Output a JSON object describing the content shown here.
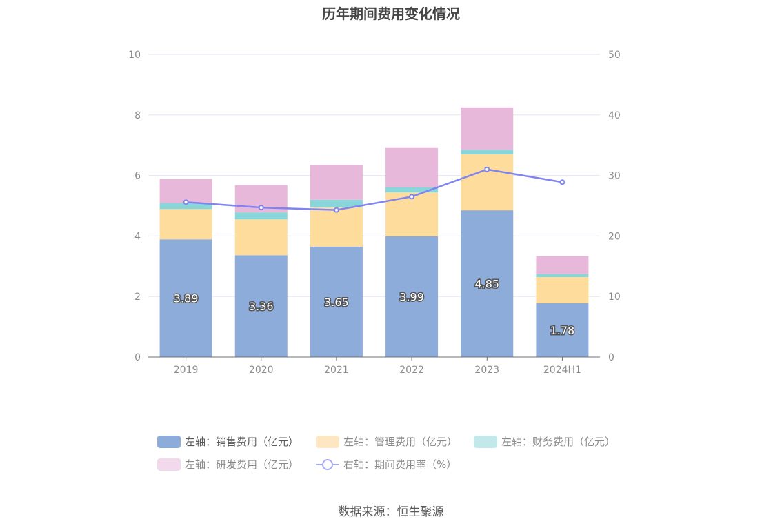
{
  "chart_data": {
    "type": "bar",
    "title": "历年期间费用变化情况",
    "categories": [
      "2019",
      "2020",
      "2021",
      "2022",
      "2023",
      "2024H1"
    ],
    "y_left": {
      "ylim": [
        0,
        10
      ],
      "ticks": [
        "0",
        "2",
        "4",
        "6",
        "8",
        "10"
      ]
    },
    "y_right": {
      "ylim": [
        0,
        50
      ],
      "ticks": [
        "0",
        "10",
        "20",
        "30",
        "40",
        "50"
      ]
    },
    "grid": true,
    "legend_position": "bottom",
    "series": [
      {
        "name": "左轴：销售费用（亿元）",
        "type": "bar",
        "axis": "left",
        "color": "#8eacd9",
        "values": [
          3.89,
          3.36,
          3.65,
          3.99,
          4.85,
          1.78
        ],
        "labels": [
          "3.89",
          "3.36",
          "3.65",
          "3.99",
          "4.85",
          "1.78"
        ]
      },
      {
        "name": "左轴：管理费用（亿元）",
        "type": "bar",
        "axis": "left",
        "color": "#fedc9b",
        "values": [
          1.0,
          1.19,
          1.3,
          1.45,
          1.85,
          0.86
        ]
      },
      {
        "name": "左轴：财务费用（亿元）",
        "type": "bar",
        "axis": "left",
        "color": "#88d6da",
        "values": [
          0.2,
          0.23,
          0.25,
          0.17,
          0.15,
          0.1
        ]
      },
      {
        "name": "左轴：研发费用（亿元）",
        "type": "bar",
        "axis": "left",
        "color": "#e8b8db",
        "values": [
          0.8,
          0.9,
          1.15,
          1.32,
          1.4,
          0.6
        ]
      },
      {
        "name": "右轴：期间费用率（%）",
        "type": "line",
        "axis": "right",
        "color": "#7f84f0",
        "values": [
          25.6,
          24.7,
          24.3,
          26.5,
          31.0,
          28.9
        ]
      }
    ],
    "legend_colors": [
      "#8eacd9",
      "#fde7c2",
      "#c3e8ea",
      "#f2d9ec",
      "#a7abf5"
    ]
  },
  "source": "数据来源：恒生聚源"
}
